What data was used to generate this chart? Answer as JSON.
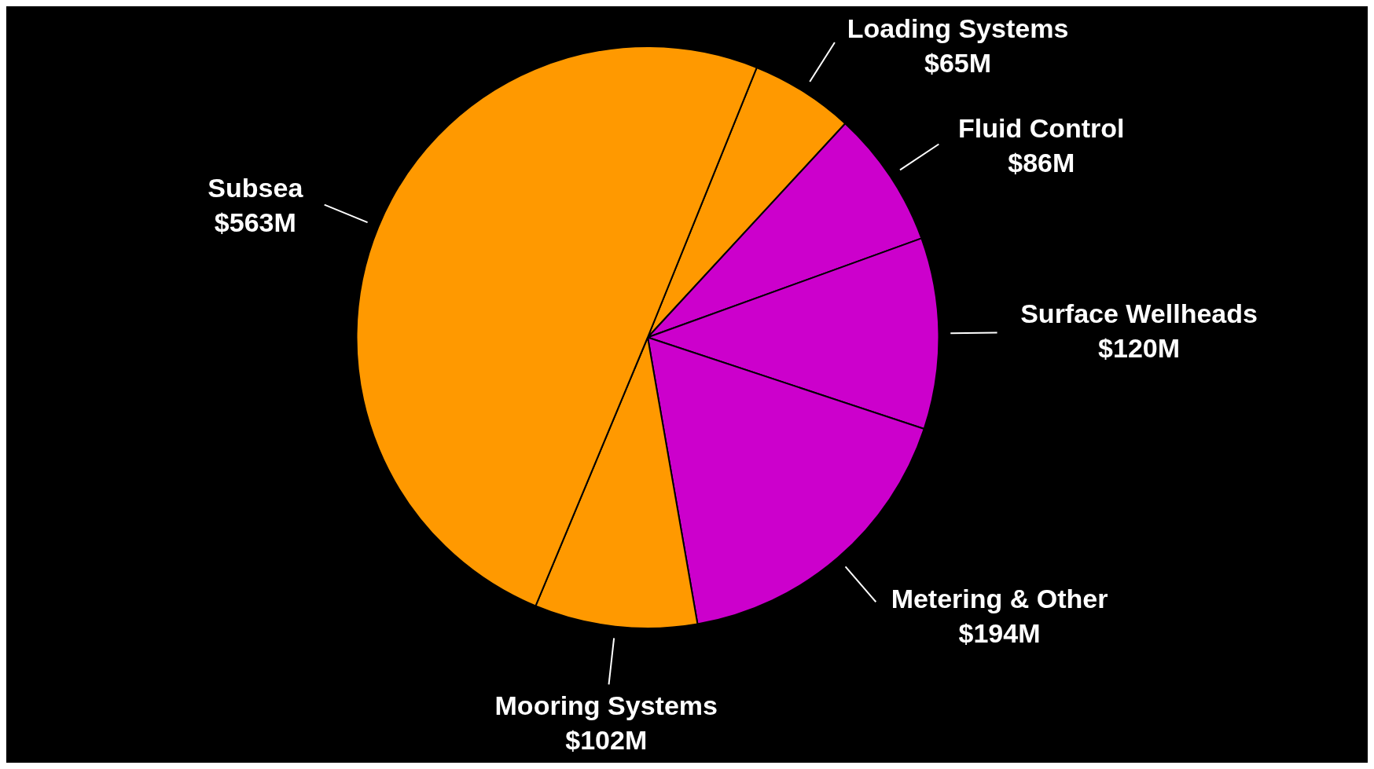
{
  "chart_data": {
    "type": "pie",
    "categories": [
      "Loading Systems",
      "Fluid Control",
      "Surface Wellheads",
      "Metering & Other",
      "Mooring Systems",
      "Subsea"
    ],
    "values": [
      65,
      86,
      120,
      194,
      102,
      563
    ],
    "value_labels": [
      "$65M",
      "$86M",
      "$120M",
      "$194M",
      "$102M",
      "$563M"
    ],
    "colors": [
      "#ff9900",
      "#cc00cc",
      "#cc00cc",
      "#cc00cc",
      "#ff9900",
      "#ff9900"
    ],
    "legend": false
  }
}
